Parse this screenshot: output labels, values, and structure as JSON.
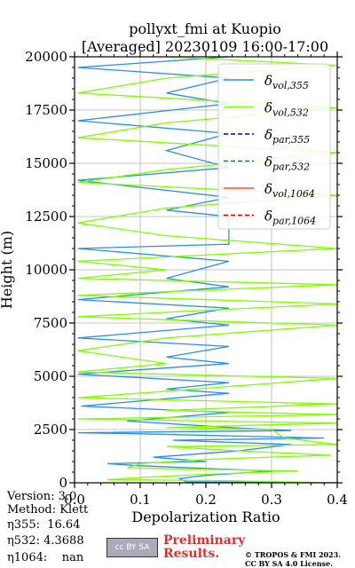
{
  "chart_data": {
    "type": "line",
    "title": "pollyxt_fmi at Kuopio",
    "subtitle": "[Averaged] 20230109 16:00-17:00",
    "xlabel": "Depolarization Ratio",
    "ylabel": "Height (m)",
    "xlim": [
      0,
      0.4
    ],
    "ylim": [
      0,
      20000
    ],
    "xticks": [
      "0.0",
      "0.1",
      "0.2",
      "0.3",
      "0.4"
    ],
    "yticks": [
      "0",
      "2500",
      "5000",
      "7500",
      "10000",
      "12500",
      "15000",
      "17500",
      "20000"
    ],
    "grid": true,
    "legend_position": "top-right",
    "series": [
      {
        "name": "vol,355",
        "color": "#2a8de8",
        "dash": "solid",
        "points": [
          [
            0.4,
            0
          ],
          [
            0.17,
            50
          ],
          [
            0.16,
            200
          ],
          [
            0.2,
            350
          ],
          [
            0.3,
            550
          ],
          [
            0.22,
            650
          ],
          [
            0.1,
            800
          ],
          [
            0.05,
            900
          ],
          [
            0.2,
            1000
          ],
          [
            0.12,
            1200
          ],
          [
            0.25,
            1500
          ],
          [
            0.33,
            1800
          ],
          [
            0.15,
            2000
          ],
          [
            0.38,
            2100
          ],
          [
            0.1,
            2300
          ],
          [
            0.005,
            2350
          ],
          [
            0.33,
            2450
          ],
          [
            0.235,
            2600
          ],
          [
            0.08,
            2900
          ],
          [
            0.235,
            3300
          ],
          [
            0.01,
            3600
          ],
          [
            0.235,
            4200
          ],
          [
            0.14,
            4400
          ],
          [
            0.235,
            4700
          ],
          [
            0.005,
            5100
          ],
          [
            0.235,
            5600
          ],
          [
            0.14,
            5900
          ],
          [
            0.235,
            6400
          ],
          [
            0.005,
            6800
          ],
          [
            0.235,
            7400
          ],
          [
            0.14,
            7700
          ],
          [
            0.235,
            8200
          ],
          [
            0.005,
            8600
          ],
          [
            0.235,
            9200
          ],
          [
            0.14,
            9600
          ],
          [
            0.235,
            10400
          ],
          [
            0.005,
            11000
          ],
          [
            0.235,
            11200
          ],
          [
            0.235,
            12500
          ],
          [
            0.14,
            12800
          ],
          [
            0.235,
            13400
          ],
          [
            0.005,
            14200
          ],
          [
            0.235,
            14800
          ],
          [
            0.14,
            15600
          ],
          [
            0.235,
            16400
          ],
          [
            0.005,
            17000
          ],
          [
            0.235,
            17800
          ],
          [
            0.14,
            18300
          ],
          [
            0.235,
            19000
          ],
          [
            0.005,
            19500
          ],
          [
            0.235,
            20000
          ]
        ]
      },
      {
        "name": "vol,532",
        "color": "#7fff00",
        "dash": "solid",
        "points": [
          [
            0.4,
            0
          ],
          [
            0.23,
            100
          ],
          [
            0.05,
            150
          ],
          [
            0.1,
            250
          ],
          [
            0.2,
            400
          ],
          [
            0.34,
            550
          ],
          [
            0.08,
            700
          ],
          [
            0.1,
            900
          ],
          [
            0.2,
            1100
          ],
          [
            0.39,
            1300
          ],
          [
            0.25,
            1500
          ],
          [
            0.14,
            1700
          ],
          [
            0.4,
            1800
          ],
          [
            0.32,
            2100
          ],
          [
            0.3,
            2500
          ],
          [
            0.14,
            2600
          ],
          [
            0.4,
            2800
          ],
          [
            0.005,
            3000
          ],
          [
            0.4,
            3200
          ],
          [
            0.14,
            3400
          ],
          [
            0.4,
            3700
          ],
          [
            0.005,
            4000
          ],
          [
            0.14,
            4300
          ],
          [
            0.4,
            4900
          ],
          [
            0.005,
            5200
          ],
          [
            0.14,
            5600
          ],
          [
            0.005,
            6200
          ],
          [
            0.14,
            6800
          ],
          [
            0.4,
            7400
          ],
          [
            0.005,
            7800
          ],
          [
            0.4,
            8400
          ],
          [
            0.005,
            8800
          ],
          [
            0.4,
            9300
          ],
          [
            0.005,
            9600
          ],
          [
            0.14,
            10000
          ],
          [
            0.005,
            10400
          ],
          [
            0.4,
            11000
          ],
          [
            0.14,
            11600
          ],
          [
            0.005,
            12200
          ],
          [
            0.14,
            12900
          ],
          [
            0.4,
            13500
          ],
          [
            0.005,
            14100
          ],
          [
            0.14,
            14700
          ],
          [
            0.4,
            15500
          ],
          [
            0.005,
            16200
          ],
          [
            0.14,
            16900
          ],
          [
            0.4,
            17600
          ],
          [
            0.005,
            18300
          ],
          [
            0.14,
            19000
          ],
          [
            0.4,
            19600
          ],
          [
            0.14,
            20000
          ]
        ]
      },
      {
        "name": "par,355",
        "color": "#0000cc",
        "dash": "dashed",
        "points": []
      },
      {
        "name": "par,532",
        "color": "#008060",
        "dash": "dashed",
        "points": []
      },
      {
        "name": "vol,1064",
        "color": "#ff5030",
        "dash": "solid",
        "points": []
      },
      {
        "name": "par,1064",
        "color": "#cc0000",
        "dash": "dashed",
        "points": []
      }
    ]
  },
  "info": {
    "version": "Version: 3.0",
    "method": "Method: Klett",
    "eta355": "η355:  16.64",
    "eta532": "η532: 4.3688",
    "eta1064": "η1064:    nan"
  },
  "footer": {
    "cc_badge": "cc BY SA",
    "preliminary": "Preliminary Results.",
    "credit": "© TROPOS & FMI 2023. CC BY SA 4.0 License."
  }
}
